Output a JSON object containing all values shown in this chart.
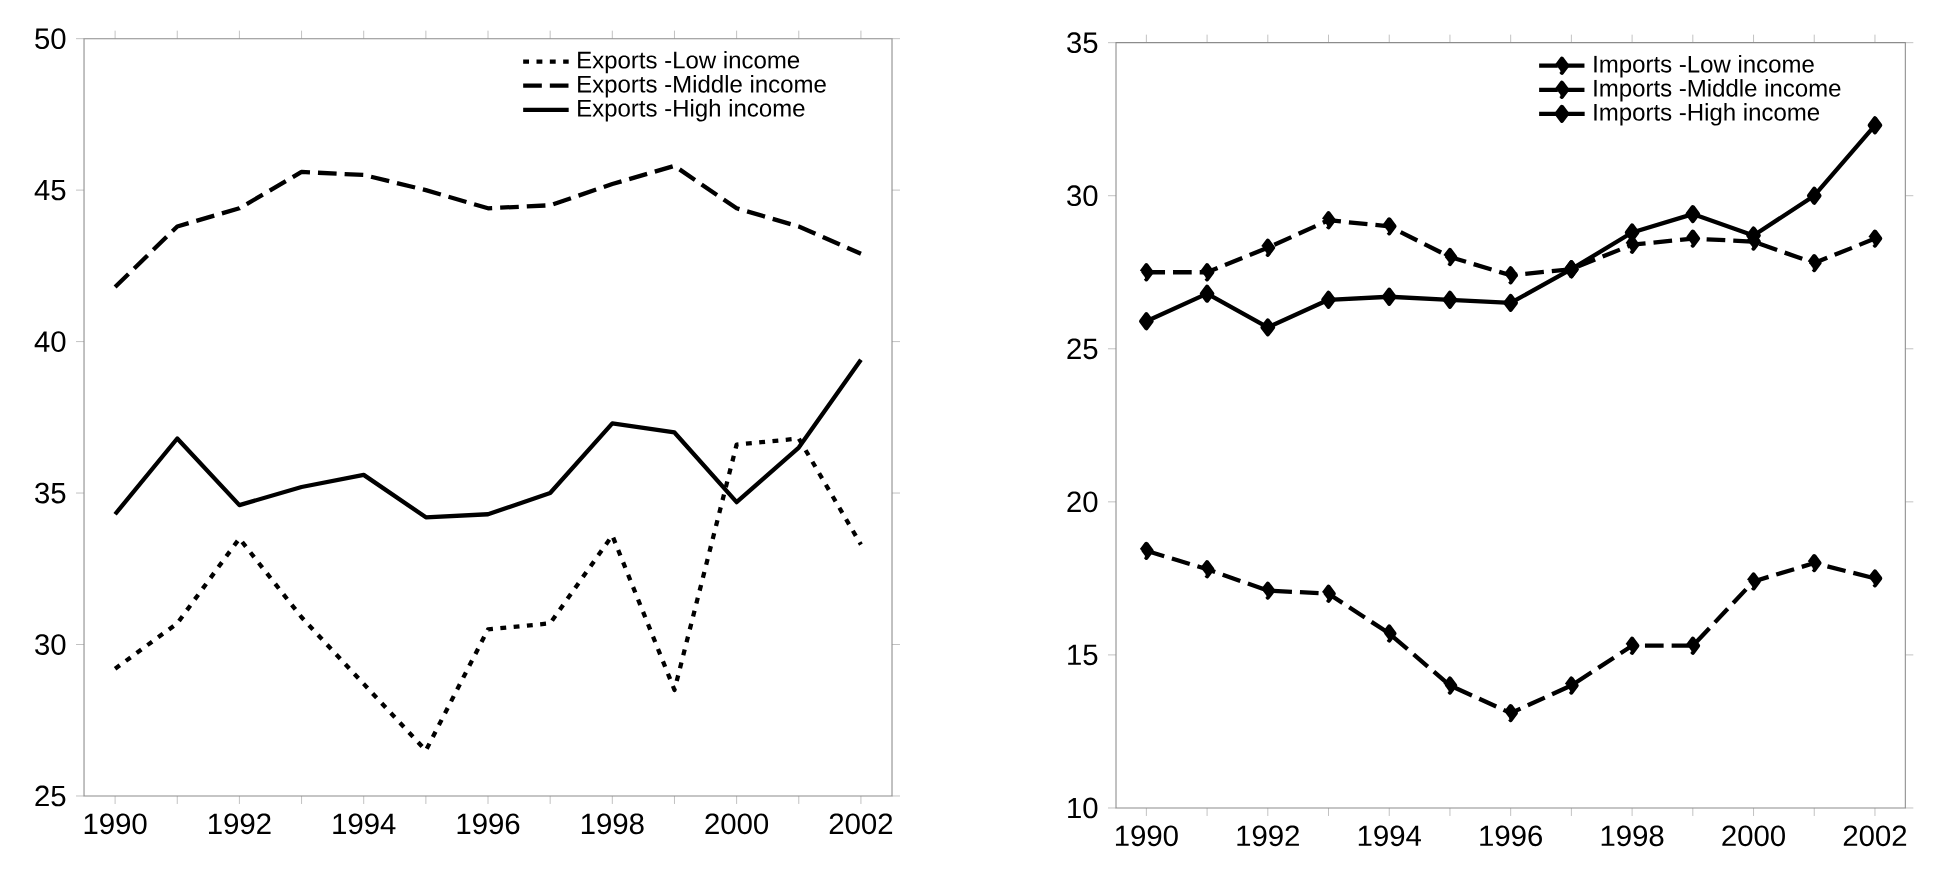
{
  "chart_data": [
    {
      "type": "line",
      "categories": [
        "1990",
        null,
        "1992",
        null,
        "1994",
        null,
        "1996",
        null,
        "1998",
        null,
        "2000",
        null,
        "2002"
      ],
      "ylim": [
        25,
        50
      ],
      "yticks": [
        25,
        30,
        35,
        40,
        45,
        50
      ],
      "grid": false,
      "legend": "top right",
      "marker": "none",
      "series": [
        {
          "name": "Exports -Low income",
          "color": "#000000",
          "line_style": "dotted",
          "values": [
            29.2,
            30.7,
            33.5,
            30.9,
            28.7,
            26.5,
            30.5,
            30.7,
            33.6,
            28.5,
            36.6,
            36.8,
            33.3
          ]
        },
        {
          "name": "Exports -Middle income",
          "color": "#000000",
          "line_style": "dashed",
          "values": [
            41.8,
            43.8,
            44.4,
            45.6,
            45.5,
            45.0,
            44.4,
            44.5,
            45.2,
            45.8,
            44.4,
            43.8,
            42.9
          ]
        },
        {
          "name": "Exports -High income",
          "color": "#000000",
          "line_style": "solid",
          "values": [
            34.3,
            36.8,
            34.6,
            35.2,
            35.6,
            34.2,
            34.3,
            35.0,
            37.3,
            37.0,
            34.7,
            36.5,
            39.4
          ]
        }
      ]
    },
    {
      "type": "line",
      "categories": [
        "1990",
        null,
        "1992",
        null,
        "1994",
        null,
        "1996",
        null,
        "1998",
        null,
        "2000",
        null,
        "2002"
      ],
      "ylim": [
        10,
        35
      ],
      "yticks": [
        10,
        15,
        20,
        25,
        30,
        35
      ],
      "grid": false,
      "legend": "top right",
      "marker": "diamond",
      "series": [
        {
          "name": "Imports -Low income",
          "color": "#000000",
          "line_style": "dashed",
          "values": [
            18.4,
            17.8,
            17.1,
            17.0,
            15.7,
            14.0,
            13.1,
            14.0,
            15.3,
            15.3,
            17.4,
            18.0,
            17.5
          ]
        },
        {
          "name": "Imports -Middle income",
          "color": "#000000",
          "line_style": "dashed",
          "values": [
            27.5,
            27.5,
            28.3,
            29.2,
            29.0,
            28.0,
            27.4,
            27.6,
            28.4,
            28.6,
            28.5,
            27.8,
            28.6
          ]
        },
        {
          "name": "Imports -High income",
          "color": "#000000",
          "line_style": "solid",
          "values": [
            25.9,
            26.8,
            25.7,
            26.6,
            26.7,
            26.6,
            26.5,
            27.6,
            28.8,
            29.4,
            28.7,
            30.0,
            32.3
          ]
        }
      ]
    }
  ]
}
